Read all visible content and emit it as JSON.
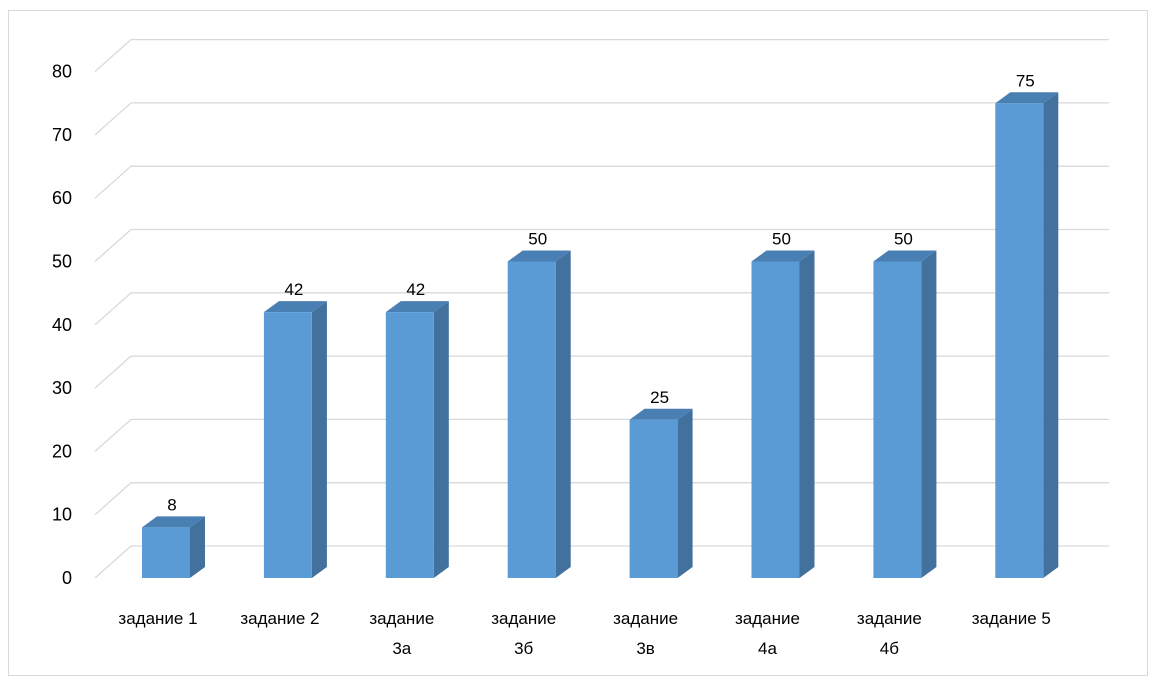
{
  "chart_data": {
    "type": "bar",
    "categories": [
      [
        "задание 1"
      ],
      [
        "задание 2"
      ],
      [
        "задание",
        "3а"
      ],
      [
        "задание",
        "3б"
      ],
      [
        "задание",
        "3в"
      ],
      [
        "задание",
        "4а"
      ],
      [
        "задание",
        "4б"
      ],
      [
        "задание 5"
      ]
    ],
    "values": [
      8,
      42,
      42,
      50,
      25,
      50,
      50,
      75
    ],
    "yticks": [
      0,
      10,
      20,
      30,
      40,
      50,
      60,
      70,
      80
    ],
    "ylim": [
      0,
      80
    ],
    "grid": true,
    "legend": "none",
    "style": "3d-column",
    "colors": {
      "front": "#5b9bd5",
      "side": "#41719c",
      "top": "#4a7fb3",
      "grid": "#d9d9d9"
    }
  }
}
